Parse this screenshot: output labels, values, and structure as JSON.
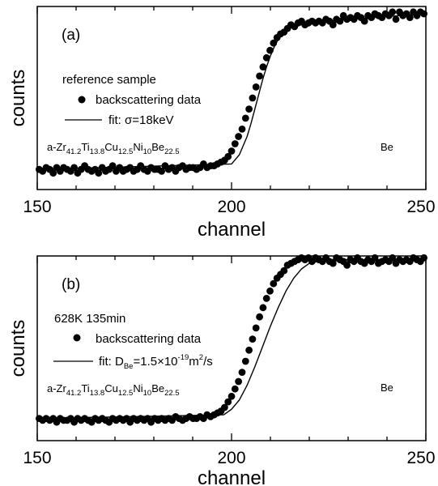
{
  "figure": {
    "panels": [
      {
        "id": "a",
        "label": "(a)",
        "ylabel": "counts",
        "xlabel": "channel",
        "legend_heading": "reference sample",
        "legend_data": "backscattering data",
        "legend_fit": "fit:  σ=18keV",
        "composition": "a-Zr41.2Ti13.8Cu12.5Ni10Be22.5",
        "element_marker": "Be",
        "xticks": [
          "150",
          "200",
          "250"
        ]
      },
      {
        "id": "b",
        "label": "(b)",
        "ylabel": "counts",
        "xlabel": "channel",
        "legend_heading": "628K 135min",
        "legend_data": "backscattering data",
        "legend_fit": "fit:  D_Be=1.5×10^-19 m^2/s",
        "composition": "a-Zr41.2Ti13.8Cu12.5Ni10Be22.5",
        "element_marker": "Be",
        "xticks": [
          "150",
          "200",
          "250"
        ]
      }
    ]
  },
  "chart_data": [
    {
      "type": "scatter",
      "title": "(a)",
      "xlabel": "channel",
      "ylabel": "counts",
      "xlim": [
        150,
        250
      ],
      "ylim": [
        0,
        1
      ],
      "grid": false,
      "legend": "upper-left",
      "series": [
        {
          "name": "backscattering data",
          "kind": "points",
          "x": [
            150.5,
            151.4,
            152.3,
            153.2,
            154.1,
            155.0,
            155.9,
            156.8,
            157.7,
            158.6,
            159.5,
            160.4,
            161.3,
            162.2,
            163.1,
            164.0,
            164.9,
            165.8,
            166.7,
            167.6,
            168.5,
            169.4,
            170.3,
            171.2,
            172.1,
            173.0,
            173.9,
            174.8,
            175.7,
            176.6,
            177.5,
            178.4,
            179.3,
            180.2,
            181.1,
            182.0,
            182.9,
            183.8,
            184.7,
            185.6,
            186.5,
            187.4,
            188.3,
            189.2,
            190.1,
            191.0,
            191.9,
            192.8,
            193.7,
            194.6,
            195.5,
            196.4,
            197.3,
            198.2,
            199.1,
            200.0,
            200.9,
            201.8,
            202.7,
            203.6,
            204.5,
            205.4,
            206.3,
            207.2,
            208.1,
            209.0,
            209.9,
            210.8,
            211.7,
            212.6,
            213.5,
            214.4,
            215.3,
            216.2,
            217.1,
            218.0,
            218.9,
            219.8,
            220.7,
            221.6,
            222.5,
            223.4,
            224.3,
            225.2,
            226.1,
            227.0,
            227.9,
            228.8,
            229.7,
            230.6,
            231.5,
            232.4,
            233.3,
            234.2,
            235.1,
            236.0,
            236.9,
            237.8,
            238.7,
            239.6,
            240.5,
            241.4,
            242.3,
            243.2,
            244.1,
            245.0,
            245.9,
            246.8,
            247.7,
            248.6,
            249.5
          ],
          "y": [
            0.11,
            0.1,
            0.12,
            0.11,
            0.09,
            0.12,
            0.1,
            0.12,
            0.11,
            0.1,
            0.12,
            0.09,
            0.11,
            0.13,
            0.11,
            0.1,
            0.11,
            0.09,
            0.12,
            0.1,
            0.11,
            0.13,
            0.1,
            0.12,
            0.1,
            0.11,
            0.12,
            0.1,
            0.11,
            0.13,
            0.11,
            0.1,
            0.12,
            0.11,
            0.11,
            0.1,
            0.13,
            0.11,
            0.12,
            0.1,
            0.12,
            0.13,
            0.11,
            0.12,
            0.12,
            0.11,
            0.12,
            0.14,
            0.12,
            0.13,
            0.13,
            0.14,
            0.15,
            0.16,
            0.18,
            0.21,
            0.25,
            0.29,
            0.33,
            0.39,
            0.44,
            0.5,
            0.56,
            0.62,
            0.67,
            0.72,
            0.76,
            0.8,
            0.83,
            0.85,
            0.86,
            0.88,
            0.9,
            0.89,
            0.91,
            0.92,
            0.9,
            0.91,
            0.92,
            0.91,
            0.92,
            0.91,
            0.93,
            0.92,
            0.9,
            0.93,
            0.92,
            0.95,
            0.93,
            0.94,
            0.93,
            0.95,
            0.94,
            0.92,
            0.95,
            0.94,
            0.96,
            0.95,
            0.94,
            0.96,
            0.95,
            0.97,
            0.93,
            0.97,
            0.95,
            0.96,
            0.94,
            0.97,
            0.95,
            0.97,
            0.96
          ]
        },
        {
          "name": "fit:  σ=18keV",
          "kind": "line",
          "x": [
            150,
            200,
            202,
            204,
            205,
            206,
            207,
            208,
            209,
            210,
            211,
            212,
            213,
            214,
            216,
            218,
            220,
            225,
            230,
            250
          ],
          "y": [
            0.11,
            0.14,
            0.19,
            0.29,
            0.36,
            0.44,
            0.52,
            0.6,
            0.67,
            0.73,
            0.78,
            0.82,
            0.85,
            0.87,
            0.89,
            0.9,
            0.91,
            0.92,
            0.93,
            0.96
          ]
        }
      ]
    },
    {
      "type": "scatter",
      "title": "(b)",
      "xlabel": "channel",
      "ylabel": "counts",
      "xlim": [
        150,
        250
      ],
      "ylim": [
        0,
        1
      ],
      "grid": false,
      "legend": "upper-left",
      "series": [
        {
          "name": "backscattering data",
          "kind": "points",
          "x": [
            150.5,
            151.4,
            152.3,
            153.2,
            154.1,
            155.0,
            155.9,
            156.8,
            157.7,
            158.6,
            159.5,
            160.4,
            161.3,
            162.2,
            163.1,
            164.0,
            164.9,
            165.8,
            166.7,
            167.6,
            168.5,
            169.4,
            170.3,
            171.2,
            172.1,
            173.0,
            173.9,
            174.8,
            175.7,
            176.6,
            177.5,
            178.4,
            179.3,
            180.2,
            181.1,
            182.0,
            182.9,
            183.8,
            184.7,
            185.6,
            186.5,
            187.4,
            188.3,
            189.2,
            190.1,
            191.0,
            191.9,
            192.8,
            193.7,
            194.6,
            195.5,
            196.4,
            197.3,
            198.2,
            199.1,
            200.0,
            200.9,
            201.8,
            202.7,
            203.6,
            204.5,
            205.4,
            206.3,
            207.2,
            208.1,
            209.0,
            209.9,
            210.8,
            211.7,
            212.6,
            213.5,
            214.4,
            215.3,
            216.2,
            217.1,
            218.0,
            218.9,
            219.8,
            220.7,
            221.6,
            222.5,
            223.4,
            224.3,
            225.2,
            226.1,
            227.0,
            227.9,
            228.8,
            229.7,
            230.6,
            231.5,
            232.4,
            233.3,
            234.2,
            235.1,
            236.0,
            236.9,
            237.8,
            238.7,
            239.6,
            240.5,
            241.4,
            242.3,
            243.2,
            244.1,
            245.0,
            245.9,
            246.8,
            247.7,
            248.6,
            249.5
          ],
          "y": [
            0.12,
            0.11,
            0.12,
            0.11,
            0.12,
            0.1,
            0.12,
            0.11,
            0.11,
            0.12,
            0.1,
            0.12,
            0.11,
            0.12,
            0.11,
            0.1,
            0.12,
            0.11,
            0.12,
            0.11,
            0.1,
            0.12,
            0.11,
            0.12,
            0.11,
            0.12,
            0.1,
            0.12,
            0.11,
            0.12,
            0.11,
            0.12,
            0.1,
            0.12,
            0.11,
            0.12,
            0.11,
            0.12,
            0.11,
            0.13,
            0.12,
            0.11,
            0.12,
            0.13,
            0.12,
            0.12,
            0.13,
            0.12,
            0.14,
            0.13,
            0.14,
            0.15,
            0.16,
            0.18,
            0.21,
            0.24,
            0.28,
            0.32,
            0.37,
            0.43,
            0.49,
            0.55,
            0.61,
            0.67,
            0.72,
            0.77,
            0.81,
            0.85,
            0.88,
            0.9,
            0.92,
            0.95,
            0.96,
            0.97,
            0.98,
            0.99,
            0.98,
            0.99,
            0.97,
            0.99,
            0.98,
            0.97,
            0.99,
            0.97,
            0.96,
            0.99,
            0.98,
            0.97,
            0.95,
            0.98,
            0.97,
            0.99,
            0.97,
            0.96,
            0.98,
            0.97,
            0.99,
            0.96,
            0.97,
            0.98,
            0.97,
            0.99,
            0.96,
            0.98,
            0.97,
            0.98,
            0.97,
            0.99,
            0.98,
            0.97,
            0.99
          ]
        },
        {
          "name": "fit:  D_Be=1.5×10^-19 m^2/s",
          "kind": "line",
          "x": [
            150,
            198,
            200,
            202,
            204,
            206,
            208,
            210,
            212,
            214,
            216,
            218,
            220,
            222,
            224,
            226,
            230,
            250
          ],
          "y": [
            0.12,
            0.14,
            0.17,
            0.22,
            0.3,
            0.4,
            0.51,
            0.62,
            0.72,
            0.81,
            0.88,
            0.93,
            0.96,
            0.97,
            0.98,
            0.98,
            0.98,
            0.98
          ]
        }
      ]
    }
  ]
}
